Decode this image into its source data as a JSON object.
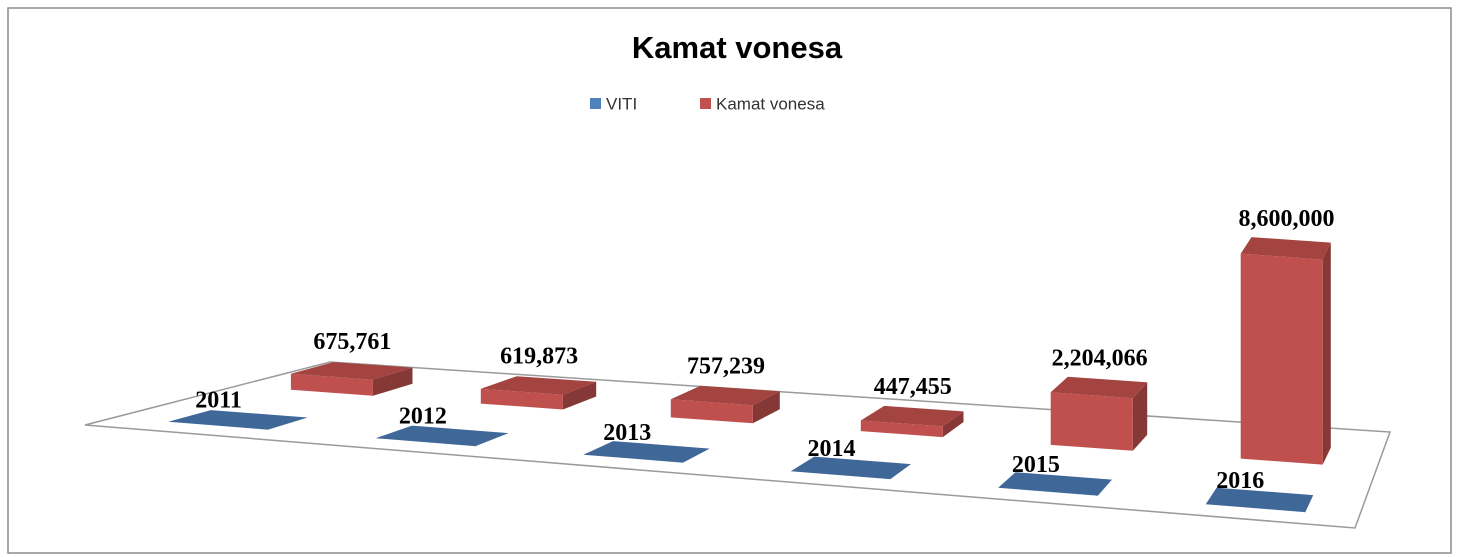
{
  "chart_data": {
    "type": "bar3d",
    "title": "Kamat vonesa",
    "categories": [
      null,
      null,
      null,
      null,
      null,
      null
    ],
    "series": [
      {
        "name": "VITI",
        "color": "#4f81bd",
        "values": [
          2011,
          2012,
          2013,
          2014,
          2015,
          2016
        ]
      },
      {
        "name": "Kamat vonesa",
        "color": "#c0504d",
        "values": [
          675761,
          619873,
          757239,
          447455,
          2204066,
          8600000
        ],
        "value_labels": [
          "675,761",
          "619,873",
          "757,239",
          "447,455",
          "2,204,066",
          "8,600,000"
        ]
      }
    ],
    "legend": "top"
  }
}
